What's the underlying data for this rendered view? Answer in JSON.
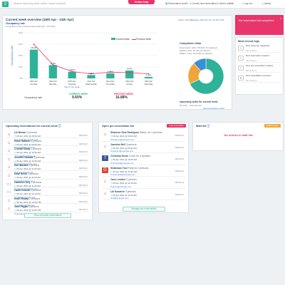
{
  "topbar": {
    "search_placeholder": "Search record by code, name, email or phone",
    "badge": "Online help",
    "nav": [
      "Reservation center",
      "Create new reservation",
      "Add to waitlist",
      "Log out",
      "Admin"
    ]
  },
  "overview": {
    "title": "Current week overview (18th Apr - 24th Apr)",
    "select_calendar": "Select calendar",
    "date_now": "Tuesday, 20th Apr 21 | 13:00 13:09",
    "occ_title": "Occupancy rate",
    "occ_sub": "Compared to the previous week (11th Apr - 17th Apr)",
    "legend_current": "Current week",
    "legend_previous": "Previous week",
    "current_week_label": "CURRENT WEEK",
    "previous_week_label": "PREVIOUS WEEK",
    "occ_row_label": "Occupancy rate",
    "occ_current": "9.60%",
    "occ_previous": "16.88%"
  },
  "chart_data": {
    "type": "bar",
    "ylabel": "Occupancy rate",
    "ylim": [
      0,
      40
    ],
    "yticks": [
      0,
      10,
      20,
      30,
      40
    ],
    "categories": [
      "18th Apr\nSunday",
      "19th Apr\nMonday",
      "20th Apr\nTuesday",
      "21st Apr\nWednesday",
      "22nd Apr\nThursday",
      "23rd Apr\nFriday",
      "24th Apr\nSaturday"
    ],
    "series": [
      {
        "name": "Current week",
        "type": "bar",
        "color": "#2eb398",
        "values": [
          25.2,
          11.6,
          5.82,
          2.88,
          4.43,
          6.87,
          1.21
        ],
        "labels": [
          "25.2%",
          "11.6%",
          "5.82%",
          "2.88%",
          "4.43%",
          "6.87%",
          "1.21%"
        ]
      },
      {
        "name": "Previous week",
        "type": "line",
        "color": "#e8356a",
        "values": [
          30,
          12,
          6,
          4,
          5.5,
          5,
          4
        ]
      }
    ],
    "today_index": 2,
    "today_label": "Day of the week"
  },
  "visits": {
    "title": "Completed visits",
    "lines": [
      "Reservation visits: 58 (5/14 Completed)",
      "Waitlist visits: 20 (20 completed)",
      "Walk-in visits: 56 (4/54 completed)"
    ],
    "pie_title": "Upcoming visits for current week",
    "pie_values": [
      {
        "label": "Reserved",
        "value": 68,
        "color": "#2eb398"
      },
      {
        "label": "Pending",
        "value": 20,
        "color": "#f0a53a"
      },
      {
        "label": "Waitlist",
        "value": 12,
        "color": "#3a8fd6"
      }
    ],
    "pie_caption": "30 visits - 120 reserved",
    "link": "Open reservation center"
  },
  "alert": {
    "text": "The reservation list completed"
  },
  "activity": {
    "title": "Most recent logs",
    "items": [
      {
        "icon": "+",
        "text": "New customer registered",
        "time": "Sat 11:00 pm"
      },
      {
        "icon": "✓",
        "text": "New reservation created",
        "time": "Sat 11:00 pm"
      },
      {
        "icon": "+",
        "text": "New pre-reservation created",
        "time": "Sat 11:00 pm"
      },
      {
        "icon": "✕",
        "text": "New cancellation received",
        "time": "Sat 11:00 pm"
      }
    ]
  },
  "upcoming": {
    "title": "Upcoming reservations for current week",
    "details": "DETAILS",
    "button": "Show all today reservations",
    "rows": [
      {
        "name": "Liz Brown",
        "date": "09 Apr 2021 @ 09:00 AM",
        "email": "jo.brown@example.com",
        "note": "3 persons",
        "icon": "home"
      },
      {
        "name": "Helen Watson",
        "date": "09 Apr 2021 @ 09:00 AM",
        "email": "helen@example.com",
        "note": "4 persons",
        "icon": "home"
      },
      {
        "name": "Crustal Sharp",
        "date": "09 Apr 2021 @ 10:30 AM",
        "email": "crustal@example.com",
        "note": "2 persons",
        "icon": "home"
      },
      {
        "name": "Jennifer Gamble",
        "date": "09 Apr 2021 @ 10:30 AM",
        "email": "jennifer@example.com",
        "note": "5 persons",
        "icon": "home"
      },
      {
        "name": "Dia Hazzard",
        "date": "09 Apr 2021 @ 11:00 AM",
        "email": "dia@example.com",
        "note": "2 persons",
        "icon": "home"
      },
      {
        "name": "Kaye Smile",
        "date": "09 Apr 2021 @ 11:00 AM",
        "email": "kaye@example.com",
        "note": "3 persons",
        "icon": "home"
      },
      {
        "name": "Cameron Guy",
        "date": "09 Apr 2021 @ 11:30 AM",
        "email": "cameron@example.com",
        "note": "2 persons",
        "icon": "laptop"
      },
      {
        "name": "Caleb Dusmit",
        "date": "09 Apr 2021 @ 11:30 AM",
        "email": "caleb@example.com",
        "note": "4 persons",
        "icon": "laptop"
      },
      {
        "name": "Nosh Neway",
        "date": "09 Apr 2021 @ 12:00 PM",
        "email": "nosh@example.com",
        "note": "2 persons",
        "icon": "home"
      },
      {
        "name": "Jane Pappa",
        "date": "09 Apr 2021 @ 12:00 PM",
        "email": "jane@example.com",
        "note": "6 persons",
        "icon": "home"
      }
    ]
  },
  "prelist": {
    "title": "Open pre-reservation list",
    "badge": "2 pre-reservation",
    "details": "DETAILS",
    "button": "Manage pre-reservations",
    "rows": [
      {
        "name": "Shannon Ruiz Rodriguez",
        "date": "09 Apr 2021 @ 09:00 AM",
        "email": "shannon@example.com",
        "note": "Status: for 2 persons",
        "icon": "home"
      },
      {
        "name": "Jasmine Bell",
        "date": "09 Apr 2021 @ 09:30 AM",
        "email": "jasmine@example.com",
        "note": "3 persons",
        "icon": "home"
      },
      {
        "name": "Christina Dixon",
        "date": "09 Apr 2021 @ 10:00 AM",
        "email": "christina@example.com",
        "note": "Lunch for 4 persons",
        "icon": "facebook"
      },
      {
        "name": "Shaimaas Tool",
        "date": "09 Apr 2021 @ 10:30 AM",
        "email": "shaimaas@example.com",
        "note": "Party for 2 persons",
        "icon": "google"
      },
      {
        "name": "Jane London",
        "date": "09 Apr 2021 @ 11:00 AM",
        "email": "jane.l@example.com",
        "note": "5 persons",
        "icon": "home"
      },
      {
        "name": "Lia Kosanee",
        "date": "09 Apr 2021 @ 11:30 AM",
        "email": "lia@example.com",
        "note": "3 persons",
        "icon": "home"
      }
    ]
  },
  "waitlist": {
    "title": "Wait list",
    "badge": "Waitlist option",
    "empty": "No entries in wait list."
  }
}
